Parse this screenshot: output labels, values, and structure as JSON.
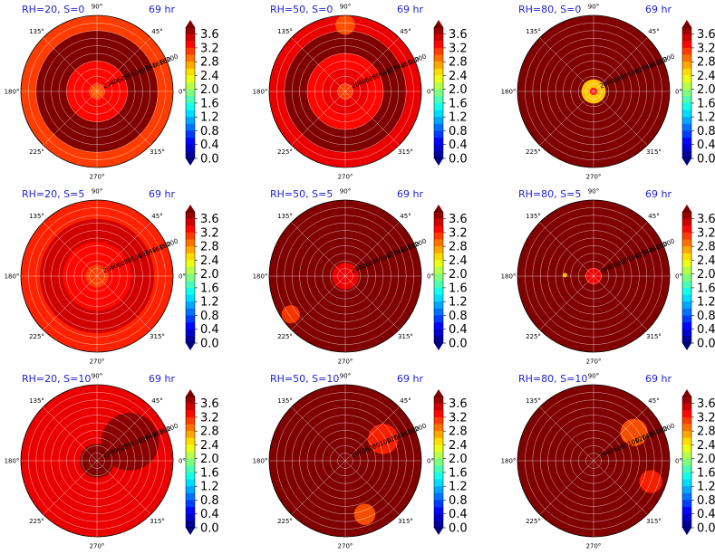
{
  "chart_data": [
    {
      "type": "polar-contour",
      "title": "RH=20, S=0",
      "time_label": "69 hr",
      "angle_ticks": [
        "90°",
        "45°",
        "0°",
        "315°",
        "270°",
        "225°",
        "180°",
        "135°"
      ],
      "radial_ticks": [
        "20",
        "40",
        "60",
        "80",
        "100",
        "120",
        "140",
        "160",
        "180",
        "200"
      ],
      "rings": [
        {
          "r": [
            0,
            18
          ],
          "level": 3.0
        },
        {
          "r": [
            18,
            80
          ],
          "level": 3.3
        },
        {
          "r": [
            80,
            160
          ],
          "level": 3.8
        },
        {
          "r": [
            160,
            200
          ],
          "level": 3.1
        }
      ],
      "patches": []
    },
    {
      "type": "polar-contour",
      "title": "RH=50, S=0",
      "time_label": "69 hr",
      "angle_ticks": [
        "90°",
        "45°",
        "0°",
        "315°",
        "270°",
        "225°",
        "180°",
        "135°"
      ],
      "radial_ticks": [
        "20",
        "40",
        "60",
        "80",
        "100",
        "120",
        "140",
        "160",
        "180",
        "200"
      ],
      "rings": [
        {
          "r": [
            0,
            20
          ],
          "level": 3.1
        },
        {
          "r": [
            20,
            60
          ],
          "level": 3.4
        },
        {
          "r": [
            60,
            100
          ],
          "level": 3.3
        },
        {
          "r": [
            100,
            160
          ],
          "level": 3.8
        },
        {
          "r": [
            160,
            200
          ],
          "level": 3.4
        }
      ],
      "patches": [
        {
          "angle": 90,
          "r": 175,
          "size": 0.13,
          "level": 3.0
        }
      ]
    },
    {
      "type": "polar-contour",
      "title": "RH=80, S=0",
      "time_label": "69 hr",
      "angle_ticks": [
        "90°",
        "45°",
        "0°",
        "315°",
        "270°",
        "225°",
        "180°",
        "135°"
      ],
      "radial_ticks": [
        "20",
        "40",
        "60",
        "80",
        "100",
        "120",
        "140",
        "160",
        "180",
        "200"
      ],
      "rings": [
        {
          "r": [
            0,
            10
          ],
          "level": 3.3
        },
        {
          "r": [
            10,
            32
          ],
          "level": 2.6
        },
        {
          "r": [
            32,
            200
          ],
          "level": 3.8
        }
      ],
      "patches": []
    },
    {
      "type": "polar-contour",
      "title": "RH=20, S=5",
      "time_label": "69 hr",
      "angle_ticks": [
        "90°",
        "45°",
        "0°",
        "315°",
        "270°",
        "225°",
        "180°",
        "135°"
      ],
      "radial_ticks": [
        "20",
        "40",
        "60",
        "80",
        "100",
        "120",
        "140",
        "160",
        "180",
        "200"
      ],
      "rings": [
        {
          "r": [
            0,
            30
          ],
          "level": 3.1
        },
        {
          "r": [
            30,
            90
          ],
          "level": 3.3
        },
        {
          "r": [
            90,
            150
          ],
          "level": 3.5
        },
        {
          "r": [
            150,
            200
          ],
          "level": 3.2
        }
      ],
      "patches": []
    },
    {
      "type": "polar-contour",
      "title": "RH=50, S=5",
      "time_label": "69 hr",
      "angle_ticks": [
        "90°",
        "45°",
        "0°",
        "315°",
        "270°",
        "225°",
        "180°",
        "135°"
      ],
      "radial_ticks": [
        "20",
        "40",
        "60",
        "80",
        "100",
        "120",
        "140",
        "160",
        "180",
        "200"
      ],
      "rings": [
        {
          "r": [
            0,
            35
          ],
          "level": 3.4
        },
        {
          "r": [
            35,
            200
          ],
          "level": 3.8
        }
      ],
      "patches": [
        {
          "angle": 215,
          "r": 175,
          "size": 0.12,
          "level": 3.1
        }
      ]
    },
    {
      "type": "polar-contour",
      "title": "RH=80, S=5",
      "time_label": "69 hr",
      "angle_ticks": [
        "90°",
        "45°",
        "0°",
        "315°",
        "270°",
        "225°",
        "180°",
        "135°"
      ],
      "radial_ticks": [
        "20",
        "40",
        "60",
        "80",
        "100",
        "120",
        "140",
        "160",
        "180",
        "200"
      ],
      "rings": [
        {
          "r": [
            0,
            22
          ],
          "level": 3.4
        },
        {
          "r": [
            22,
            200
          ],
          "level": 3.8
        }
      ],
      "patches": [
        {
          "angle": 178,
          "r": 75,
          "size": 0.03,
          "level": 2.6
        }
      ]
    },
    {
      "type": "polar-contour",
      "title": "RH=20, S=10",
      "time_label": "69 hr",
      "angle_ticks": [
        "90°",
        "45°",
        "0°",
        "315°",
        "270°",
        "225°",
        "180°",
        "135°"
      ],
      "radial_ticks": [
        "20",
        "40",
        "60",
        "80",
        "100",
        "120",
        "140",
        "160",
        "180",
        "200"
      ],
      "rings": [
        {
          "r": [
            0,
            45
          ],
          "level": 3.8
        },
        {
          "r": [
            45,
            200
          ],
          "level": 3.4
        }
      ],
      "patches": [
        {
          "angle": 30,
          "r": 100,
          "size": 0.38,
          "level": 3.8
        }
      ]
    },
    {
      "type": "polar-contour",
      "title": "RH=50, S=10",
      "time_label": "69 hr",
      "angle_ticks": [
        "90°",
        "45°",
        "0°",
        "315°",
        "270°",
        "225°",
        "180°",
        "135°"
      ],
      "radial_ticks": [
        "20",
        "40",
        "60",
        "80",
        "100",
        "120",
        "140",
        "160",
        "180",
        "200"
      ],
      "rings": [
        {
          "r": [
            0,
            200
          ],
          "level": 3.8
        }
      ],
      "patches": [
        {
          "angle": 30,
          "r": 115,
          "size": 0.2,
          "level": 3.2
        },
        {
          "angle": 290,
          "r": 150,
          "size": 0.14,
          "level": 3.0
        }
      ]
    },
    {
      "type": "polar-contour",
      "title": "RH=80, S=10",
      "time_label": "69 hr",
      "angle_ticks": [
        "90°",
        "45°",
        "0°",
        "315°",
        "270°",
        "225°",
        "180°",
        "135°"
      ],
      "radial_ticks": [
        "20",
        "40",
        "60",
        "80",
        "100",
        "120",
        "140",
        "160",
        "180",
        "200"
      ],
      "rings": [
        {
          "r": [
            0,
            200
          ],
          "level": 3.8
        }
      ],
      "patches": [
        {
          "angle": 35,
          "r": 130,
          "size": 0.18,
          "level": 3.0
        },
        {
          "angle": 340,
          "r": 160,
          "size": 0.15,
          "level": 3.2
        }
      ]
    }
  ],
  "colorbar": {
    "ticks": [
      "3.6",
      "3.2",
      "2.8",
      "2.4",
      "2.0",
      "1.6",
      "1.2",
      "0.8",
      "0.4",
      "0.0"
    ],
    "min": 0.0,
    "max": 3.8,
    "extend": "both"
  }
}
